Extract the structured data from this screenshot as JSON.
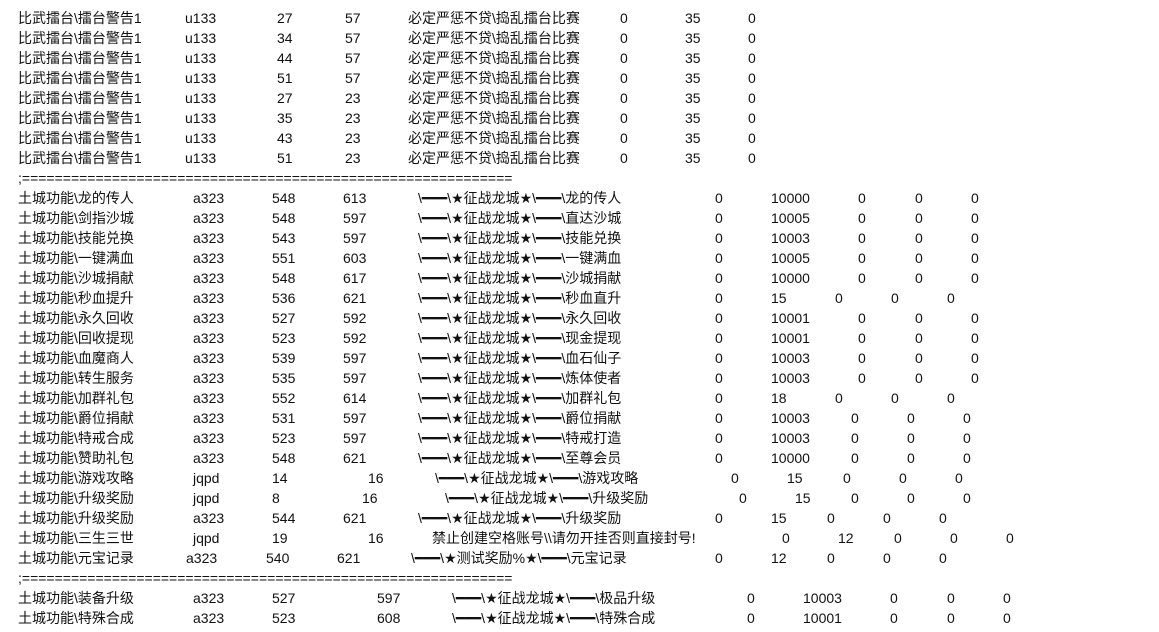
{
  "editor": {
    "lines": [
      {
        "type": "row",
        "cells": [
          "比武擂台\\擂台警告1",
          "u133",
          "27",
          "57",
          "必定严惩不贷\\捣乱擂台比赛",
          "0",
          "35",
          "0"
        ]
      },
      {
        "type": "row",
        "cells": [
          "比武擂台\\擂台警告1",
          "u133",
          "34",
          "57",
          "必定严惩不贷\\捣乱擂台比赛",
          "0",
          "35",
          "0"
        ]
      },
      {
        "type": "row",
        "cells": [
          "比武擂台\\擂台警告1",
          "u133",
          "44",
          "57",
          "必定严惩不贷\\捣乱擂台比赛",
          "0",
          "35",
          "0"
        ]
      },
      {
        "type": "row",
        "cells": [
          "比武擂台\\擂台警告1",
          "u133",
          "51",
          "57",
          "必定严惩不贷\\捣乱擂台比赛",
          "0",
          "35",
          "0"
        ]
      },
      {
        "type": "row",
        "cells": [
          "比武擂台\\擂台警告1",
          "u133",
          "27",
          "23",
          "必定严惩不贷\\捣乱擂台比赛",
          "0",
          "35",
          "0"
        ]
      },
      {
        "type": "row",
        "cells": [
          "比武擂台\\擂台警告1",
          "u133",
          "35",
          "23",
          "必定严惩不贷\\捣乱擂台比赛",
          "0",
          "35",
          "0"
        ]
      },
      {
        "type": "row",
        "cells": [
          "比武擂台\\擂台警告1",
          "u133",
          "43",
          "23",
          "必定严惩不贷\\捣乱擂台比赛",
          "0",
          "35",
          "0"
        ]
      },
      {
        "type": "row",
        "cells": [
          "比武擂台\\擂台警告1",
          "u133",
          "51",
          "23",
          "必定严惩不贷\\捣乱擂台比赛",
          "0",
          "35",
          "0"
        ]
      },
      {
        "type": "sep",
        "text": ";============================================================"
      },
      {
        "type": "row",
        "cells": [
          "土城功能\\龙的传人",
          "a323",
          "548",
          "613",
          "\\━━━\\★征战龙城★\\━━━\\龙的传人",
          "0",
          "10000",
          "0",
          "0",
          "0"
        ]
      },
      {
        "type": "row",
        "cells": [
          "土城功能\\剑指沙城",
          "a323",
          "548",
          "597",
          "\\━━━\\★征战龙城★\\━━━\\直达沙城",
          "0",
          "10005",
          "0",
          "0",
          "0"
        ]
      },
      {
        "type": "row",
        "cells": [
          "土城功能\\技能兑换",
          "a323",
          "543",
          "597",
          "\\━━━\\★征战龙城★\\━━━\\技能兑换",
          "0",
          "10003",
          "0",
          "0",
          "0"
        ]
      },
      {
        "type": "row",
        "cells": [
          "土城功能\\一键满血",
          "a323",
          "551",
          "603",
          "\\━━━\\★征战龙城★\\━━━\\一键满血",
          "0",
          "10005",
          "0",
          "0",
          "0"
        ]
      },
      {
        "type": "row",
        "cells": [
          "土城功能\\沙城捐献",
          "a323",
          "548",
          "617",
          "\\━━━\\★征战龙城★\\━━━\\沙城捐献",
          "0",
          "10000",
          "0",
          "0",
          "0"
        ]
      },
      {
        "type": "row",
        "cells": [
          "土城功能\\秒血提升",
          "a323",
          "536",
          "621",
          "\\━━━\\★征战龙城★\\━━━\\秒血直升",
          "0",
          "15",
          "0",
          "0",
          "0"
        ]
      },
      {
        "type": "row",
        "cells": [
          "土城功能\\永久回收",
          "a323",
          "527",
          "592",
          "\\━━━\\★征战龙城★\\━━━\\永久回收",
          "0",
          "10001",
          "0",
          "0",
          "0"
        ]
      },
      {
        "type": "row",
        "cells": [
          "土城功能\\回收提现",
          "a323",
          "523",
          "592",
          "\\━━━\\★征战龙城★\\━━━\\现金提现",
          "0",
          "10001",
          "0",
          "0",
          "0"
        ]
      },
      {
        "type": "row",
        "cells": [
          "土城功能\\血魔商人",
          "a323",
          "539",
          "597",
          "\\━━━\\★征战龙城★\\━━━\\血石仙子",
          "0",
          "10003",
          "0",
          "0",
          "0"
        ]
      },
      {
        "type": "row",
        "cells": [
          "土城功能\\转生服务",
          "a323",
          "535",
          "597",
          "\\━━━\\★征战龙城★\\━━━\\炼体使者",
          "0",
          "10003",
          "0",
          "0",
          "0"
        ]
      },
      {
        "type": "row",
        "cells": [
          "土城功能\\加群礼包",
          "a323",
          "552",
          "614",
          "\\━━━\\★征战龙城★\\━━━\\加群礼包",
          "0",
          "18",
          "0",
          "0",
          "0"
        ]
      },
      {
        "type": "row",
        "cells": [
          "土城功能\\爵位捐献",
          "a323",
          "531",
          "597",
          "\\━━━\\★征战龙城★\\━━━\\爵位捐献",
          "0",
          "10003",
          "0",
          "0",
          "0"
        ]
      },
      {
        "type": "row",
        "cells": [
          "土城功能\\特戒合成",
          "a323",
          "523",
          "597",
          "\\━━━\\★征战龙城★\\━━━\\特戒打造",
          "0",
          "10003",
          "0",
          "0",
          "0"
        ]
      },
      {
        "type": "row",
        "cells": [
          "土城功能\\赞助礼包",
          "a323",
          "548",
          "621",
          "\\━━━\\★征战龙城★\\━━━\\至尊会员",
          "0",
          "10000",
          "0",
          "0",
          "0"
        ]
      },
      {
        "type": "row",
        "cells": [
          "土城功能\\游戏攻略",
          "jqpd",
          "14",
          "16",
          "\\━━━\\★征战龙城★\\━━━\\游戏攻略",
          "0",
          "15",
          "0",
          "0",
          "0"
        ]
      },
      {
        "type": "row",
        "cells": [
          "土城功能\\升级奖励",
          "jqpd",
          "8",
          "16",
          "\\━━━\\★征战龙城★\\━━━\\升级奖励",
          "0",
          "15",
          "0",
          "0",
          "0"
        ]
      },
      {
        "type": "row",
        "cells": [
          "土城功能\\升级奖励",
          "a323",
          "544",
          "621",
          "\\━━━\\★征战龙城★\\━━━\\升级奖励",
          "0",
          "15",
          "0",
          "0",
          "0"
        ]
      },
      {
        "type": "row",
        "cells": [
          "土城功能\\三生三世",
          "jqpd",
          "19",
          "16",
          "禁止创建空格账号\\\\请勿开挂否则直接封号!",
          "0",
          "12",
          "0",
          "0",
          "0"
        ]
      },
      {
        "type": "row",
        "cells": [
          "土城功能\\元宝记录",
          "a323",
          "540",
          "621",
          "\\━━━\\★测试奖励%★\\━━━\\元宝记录",
          "0",
          "12",
          "0",
          "0",
          "0"
        ]
      },
      {
        "type": "sep",
        "text": ";============================================================"
      },
      {
        "type": "row",
        "cells": [
          "土城功能\\装备升级",
          "a323",
          "527",
          "597",
          "\\━━━\\★征战龙城★\\━━━\\极品升级",
          "0",
          "10003",
          "0",
          "0",
          "0"
        ]
      },
      {
        "type": "row",
        "cells": [
          "土城功能\\特殊合成",
          "a323",
          "523",
          "608",
          "\\━━━\\★征战龙城★\\━━━\\特殊合成",
          "0",
          "10001",
          "0",
          "0",
          "0"
        ]
      }
    ]
  }
}
